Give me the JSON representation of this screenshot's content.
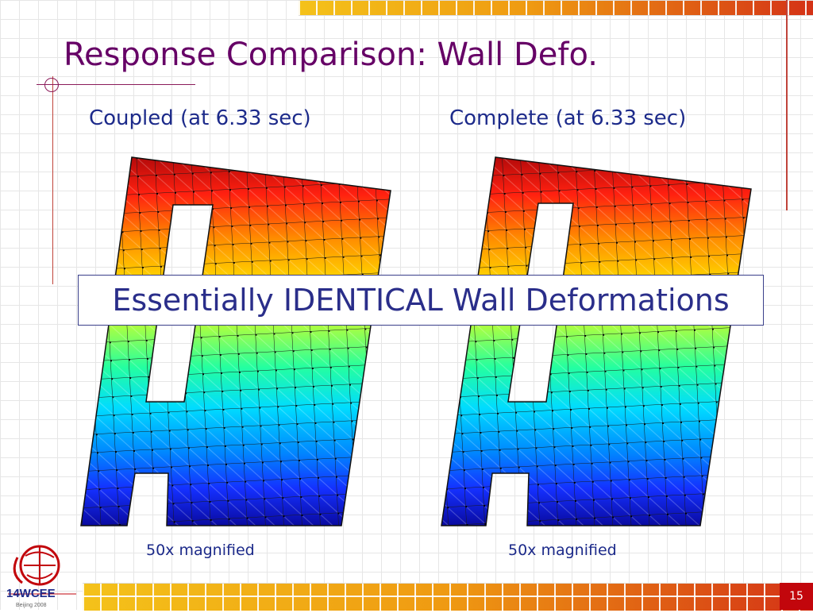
{
  "slide": {
    "title": "Response Comparison: Wall Defo.",
    "left_label": "Coupled (at 6.33 sec)",
    "right_label": "Complete (at 6.33 sec)",
    "left_magnification": "50x magnified",
    "right_magnification": "50x magnified",
    "callout": "Essentially IDENTICAL Wall Deformations",
    "page_number": "15"
  },
  "logo": {
    "text": "14WCEE",
    "subtext": "Beijing 2008"
  },
  "colors": {
    "title": "#660066",
    "label": "#1c2a8a",
    "callout_text": "#2a2e8a",
    "accent_red": "#c2060c",
    "stripe_start": "#f4c21a",
    "stripe_end": "#d43216"
  },
  "icons": {
    "logo": "wcee-logo-icon"
  }
}
